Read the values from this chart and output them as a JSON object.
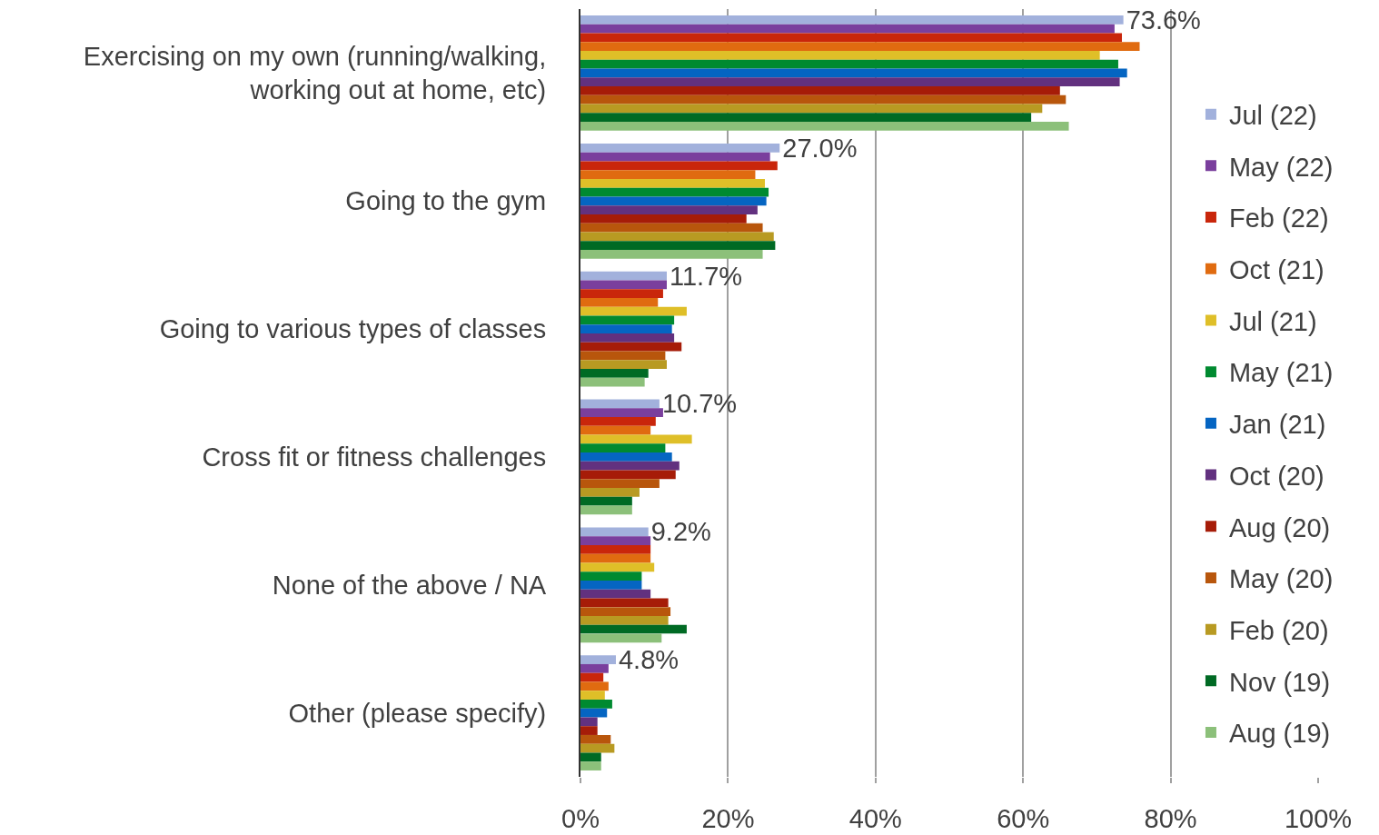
{
  "chart_data": {
    "type": "bar",
    "orientation": "horizontal",
    "categories": [
      "Exercising on my own (running/walking, working out at home, etc)",
      "Going to the gym",
      "Going to various types of classes",
      "Cross fit or fitness challenges",
      "None of the above / NA",
      "Other (please specify)"
    ],
    "series": [
      {
        "name": "Jul (22)",
        "color": "#a2b1dc",
        "values": [
          73.6,
          27.0,
          11.7,
          10.7,
          9.2,
          4.8
        ],
        "value_labels": [
          "73.6%",
          "27.0%",
          "11.7%",
          "10.7%",
          "9.2%",
          "4.8%"
        ]
      },
      {
        "name": "May (22)",
        "color": "#7a3f9d",
        "values": [
          72.4,
          25.7,
          11.7,
          11.2,
          9.5,
          3.8
        ]
      },
      {
        "name": "Feb (22)",
        "color": "#c9260b",
        "values": [
          73.4,
          26.7,
          11.2,
          10.2,
          9.5,
          3.1
        ]
      },
      {
        "name": "Oct (21)",
        "color": "#e06b10",
        "values": [
          75.8,
          23.7,
          10.5,
          9.5,
          9.5,
          3.8
        ]
      },
      {
        "name": "Jul (21)",
        "color": "#dfbf28",
        "values": [
          70.4,
          25.0,
          14.4,
          15.1,
          10.0,
          3.3
        ]
      },
      {
        "name": "May (21)",
        "color": "#008a30",
        "values": [
          72.9,
          25.5,
          12.7,
          11.5,
          8.3,
          4.3
        ]
      },
      {
        "name": "Jan (21)",
        "color": "#0565c2",
        "values": [
          74.1,
          25.2,
          12.4,
          12.4,
          8.3,
          3.6
        ]
      },
      {
        "name": "Oct (20)",
        "color": "#62317f",
        "values": [
          73.1,
          24.0,
          12.7,
          13.4,
          9.5,
          2.3
        ]
      },
      {
        "name": "Aug (20)",
        "color": "#a61c08",
        "values": [
          65.0,
          22.5,
          13.7,
          12.9,
          11.9,
          2.3
        ]
      },
      {
        "name": "May (20)",
        "color": "#b8560c",
        "values": [
          65.8,
          24.7,
          11.5,
          10.7,
          12.2,
          4.1
        ]
      },
      {
        "name": "Feb (20)",
        "color": "#b89a22",
        "values": [
          62.6,
          26.2,
          11.7,
          8.0,
          11.9,
          4.6
        ]
      },
      {
        "name": "Nov (19)",
        "color": "#006a24",
        "values": [
          61.1,
          26.4,
          9.2,
          7.0,
          14.4,
          2.8
        ]
      },
      {
        "name": "Aug (19)",
        "color": "#8cc07a",
        "values": [
          66.2,
          24.7,
          8.7,
          7.0,
          11.0,
          2.8
        ]
      }
    ],
    "xlim": [
      0,
      100
    ],
    "xticks": [
      {
        "value": 0,
        "label": "0%"
      },
      {
        "value": 20,
        "label": "20%"
      },
      {
        "value": 40,
        "label": "40%"
      },
      {
        "value": 60,
        "label": "60%"
      },
      {
        "value": 80,
        "label": "80%"
      },
      {
        "value": 100,
        "label": "100%"
      }
    ],
    "grid": "x",
    "legend": "right"
  }
}
